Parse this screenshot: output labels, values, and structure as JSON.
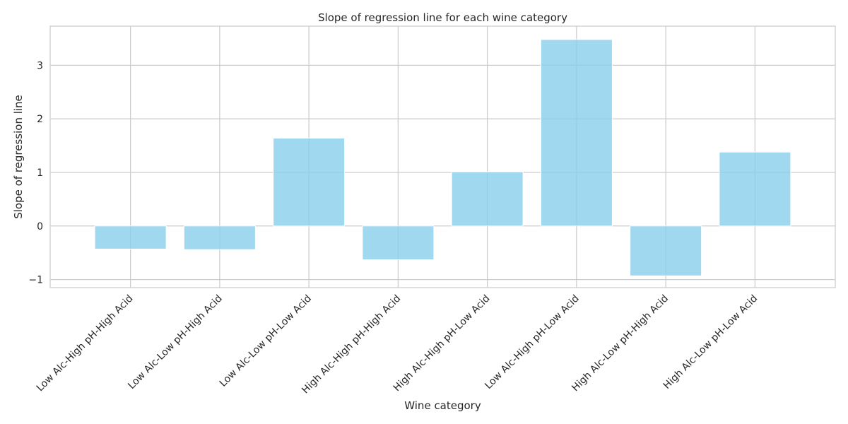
{
  "chart_data": {
    "type": "bar",
    "title": "Slope of regression line for each wine category",
    "xlabel": "Wine category",
    "ylabel": "Slope of regression line",
    "categories": [
      "Low Alc-High pH-High Acid",
      "Low Alc-Low pH-High Acid",
      "Low Alc-Low pH-Low Acid",
      "High Alc-High pH-High Acid",
      "High Alc-High pH-Low Acid",
      "Low Alc-High pH-Low Acid",
      "High Alc-Low pH-High Acid",
      "High Alc-Low pH-Low Acid"
    ],
    "values": [
      -0.43,
      -0.44,
      1.64,
      -0.63,
      1.01,
      3.48,
      -0.93,
      1.38
    ],
    "ylim": [
      -1.15,
      3.73
    ],
    "yticks": [
      -1,
      0,
      1,
      2,
      3
    ],
    "ytick_labels": [
      "−1",
      "0",
      "1",
      "2",
      "3"
    ],
    "grid": true,
    "bar_color": "#87ceeb"
  }
}
